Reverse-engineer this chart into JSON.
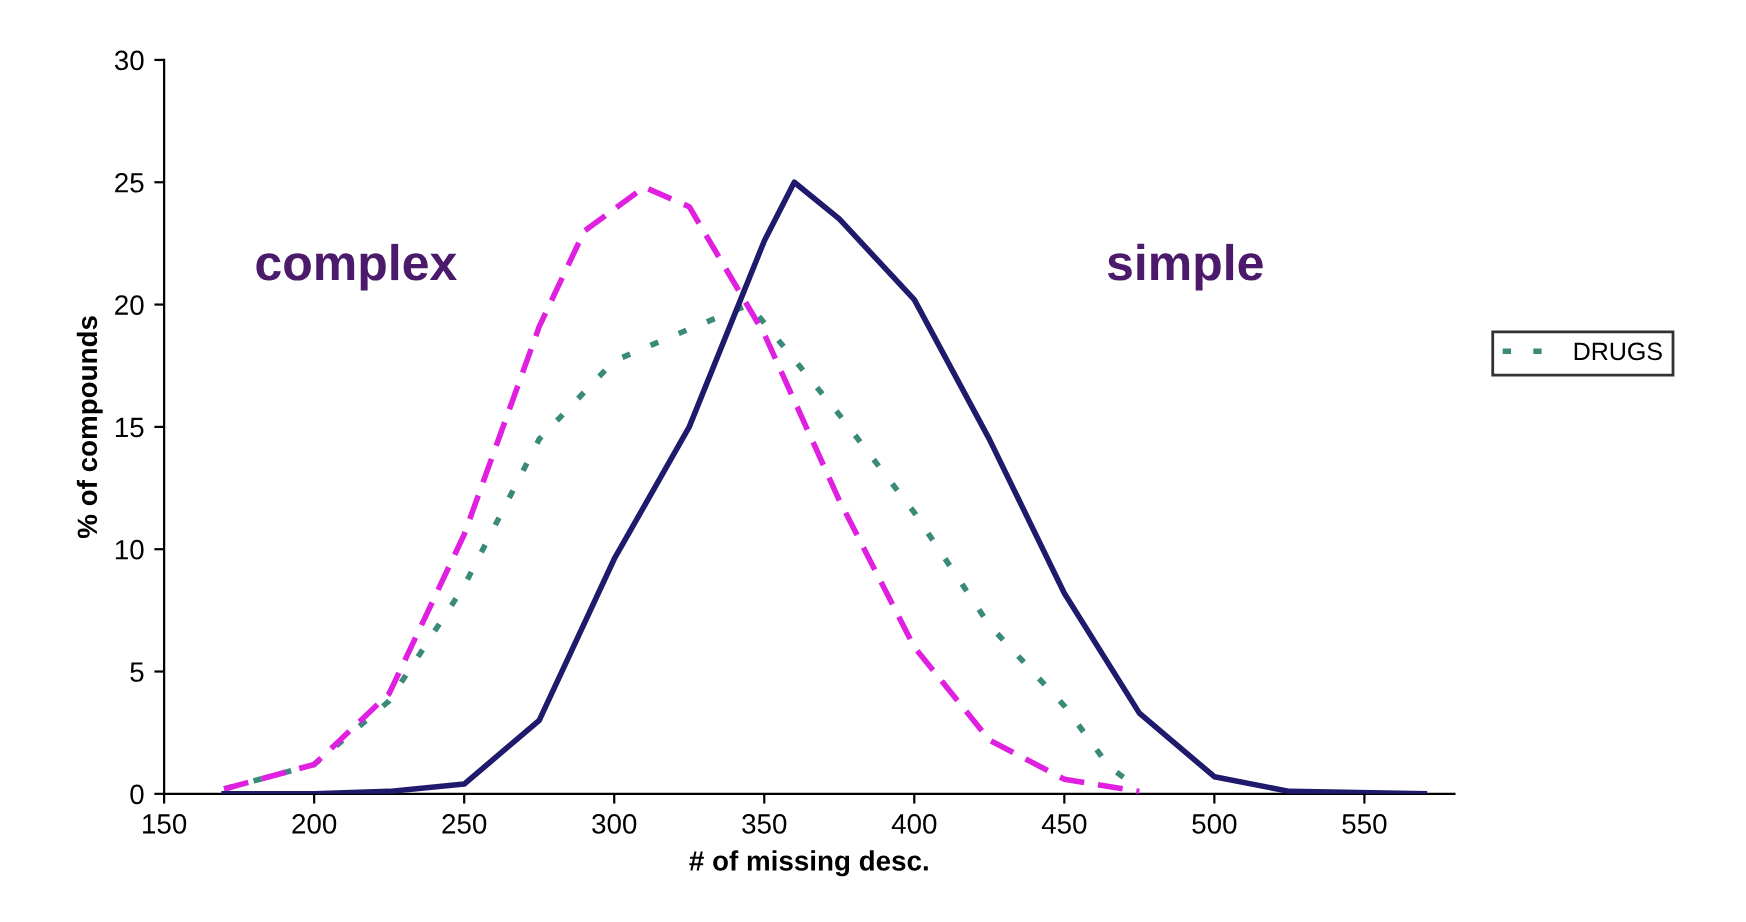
{
  "chart_data": {
    "type": "line",
    "xlabel": "# of missing desc.",
    "ylabel": "% of compounds",
    "xlim": [
      150,
      580
    ],
    "ylim": [
      0,
      30
    ],
    "xticks": [
      150,
      200,
      250,
      300,
      350,
      400,
      450,
      500,
      550
    ],
    "yticks": [
      0,
      5,
      10,
      15,
      20,
      25,
      30
    ],
    "grid": false,
    "legend": "right",
    "marker": "none",
    "annotations": [
      "complex",
      "simple"
    ],
    "series": [
      {
        "color": "#1f1a6b",
        "line_style": "solid",
        "x": [
          170,
          200,
          225,
          250,
          275,
          300,
          325,
          350,
          360,
          375,
          400,
          425,
          450,
          475,
          500,
          525,
          570
        ],
        "values": [
          0,
          0,
          0.1,
          0.4,
          3,
          9.6,
          15,
          22.6,
          25,
          23.5,
          20.2,
          14.5,
          8.2,
          3.3,
          0.7,
          0.1,
          0
        ]
      },
      {
        "color": "#e020e0",
        "line_style": "dashed",
        "x": [
          170,
          200,
          225,
          250,
          275,
          290,
          310,
          325,
          350,
          375,
          400,
          425,
          450,
          475
        ],
        "values": [
          0.2,
          1.2,
          4.1,
          10.6,
          19.1,
          23,
          24.8,
          24,
          18.8,
          12,
          6,
          2.2,
          0.6,
          0.1
        ]
      },
      {
        "name": "DRUGS",
        "color": "#3a8a7a",
        "line_style": "dotted",
        "x": [
          170,
          200,
          225,
          250,
          275,
          300,
          325,
          345,
          375,
          400,
          425,
          450,
          465,
          475
        ],
        "values": [
          0.2,
          1.2,
          3.8,
          8.5,
          14.5,
          17.7,
          19,
          20,
          15.5,
          11.5,
          6.9,
          3.6,
          1.1,
          0.2
        ]
      }
    ]
  }
}
